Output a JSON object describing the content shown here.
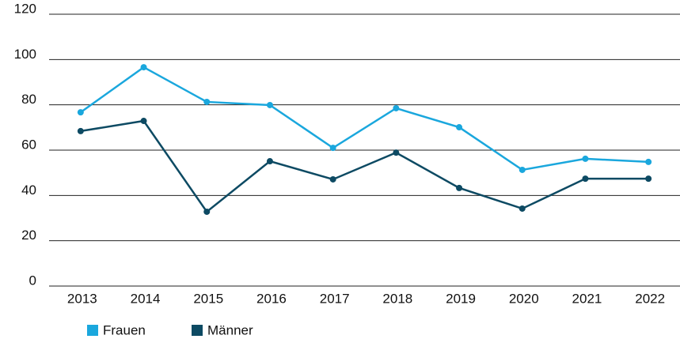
{
  "chart_data": {
    "type": "line",
    "x": [
      "2013",
      "2014",
      "2015",
      "2016",
      "2017",
      "2018",
      "2019",
      "2020",
      "2021",
      "2022"
    ],
    "series": [
      {
        "name": "Frauen",
        "color": "#1aa7dd",
        "values": [
          76.7,
          96.6,
          81.3,
          79.9,
          61,
          78.5,
          70.1,
          51.3,
          56.2,
          54.8
        ]
      },
      {
        "name": "Männer",
        "color": "#0d4a63",
        "values": [
          68.4,
          72.9,
          32.8,
          55.1,
          47.1,
          58.9,
          43.3,
          34.2,
          47.4,
          47.4
        ]
      }
    ],
    "ylim": [
      0,
      120
    ],
    "yticks": [
      0,
      20,
      40,
      60,
      80,
      100,
      120
    ],
    "grid": true,
    "legend": "bottom-left"
  }
}
